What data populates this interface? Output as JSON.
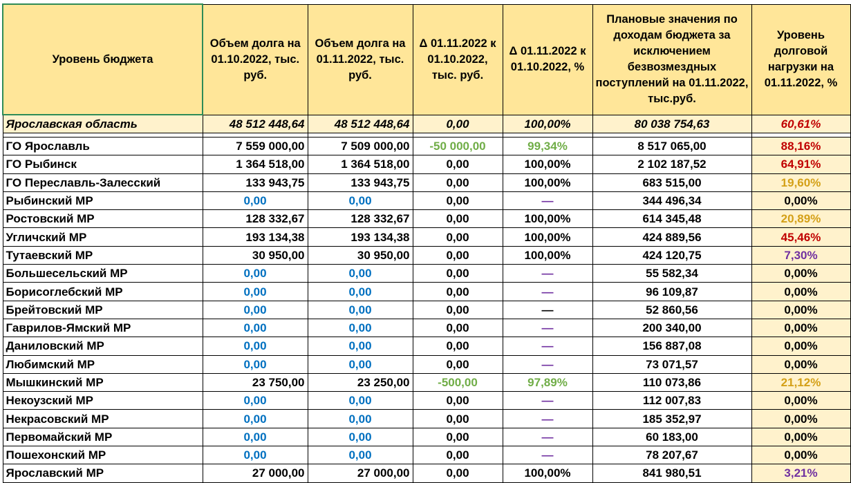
{
  "header": {
    "col_level": "Уровень бюджета",
    "col_debt_oct": "Объем долга на 01.10.2022, тыс. руб.",
    "col_debt_nov": "Объем долга на 01.11.2022, тыс. руб.",
    "col_delta_abs": "Δ 01.11.2022 к 01.10.2022, тыс. руб.",
    "col_delta_pct": "Δ 01.11.2022 к 01.10.2022, %",
    "col_plan": "Плановые значения по доходам бюджета за исключением безвозмездных поступлений на 01.11.2022, тыс.руб.",
    "col_load": "Уровень долговой нагрузки на 01.11.2022, %"
  },
  "region": {
    "name": "Ярославская область",
    "debt_oct": "48 512 448,64",
    "debt_nov": "48 512 448,64",
    "delta_abs": "0,00",
    "delta_pct": "100,00%",
    "plan": "80 038 754,63",
    "load": "60,61%"
  },
  "rows": [
    {
      "name": "ГО Ярославль",
      "debt_oct": "7 559 000,00",
      "debt_nov": "7 509 000,00",
      "delta_abs": "-50 000,00",
      "delta_pct": "99,34%",
      "plan": "8 517 065,00",
      "load": "88,16%"
    },
    {
      "name": "ГО Рыбинск",
      "debt_oct": "1 364 518,00",
      "debt_nov": "1 364 518,00",
      "delta_abs": "0,00",
      "delta_pct": "100,00%",
      "plan": "2 102 187,52",
      "load": "64,91%"
    },
    {
      "name": "ГО Переславль-Залесский",
      "debt_oct": "133 943,75",
      "debt_nov": "133 943,75",
      "delta_abs": "0,00",
      "delta_pct": "100,00%",
      "plan": "683 515,00",
      "load": "19,60%"
    },
    {
      "name": "Рыбинский МР",
      "debt_oct": "0,00",
      "debt_nov": "0,00",
      "delta_abs": "0,00",
      "delta_pct": "—",
      "plan": "344 496,34",
      "load": "0,00%"
    },
    {
      "name": "Ростовский МР",
      "debt_oct": "128 332,67",
      "debt_nov": "128 332,67",
      "delta_abs": "0,00",
      "delta_pct": "100,00%",
      "plan": "614 345,48",
      "load": "20,89%"
    },
    {
      "name": "Угличский МР",
      "debt_oct": "193 134,38",
      "debt_nov": "193 134,38",
      "delta_abs": "0,00",
      "delta_pct": "100,00%",
      "plan": "424 889,56",
      "load": "45,46%"
    },
    {
      "name": "Тутаевский МР",
      "debt_oct": "30 950,00",
      "debt_nov": "30 950,00",
      "delta_abs": "0,00",
      "delta_pct": "100,00%",
      "plan": "424 120,75",
      "load": "7,30%"
    },
    {
      "name": "Большесельский МР",
      "debt_oct": "0,00",
      "debt_nov": "0,00",
      "delta_abs": "0,00",
      "delta_pct": "—",
      "plan": "55 582,34",
      "load": "0,00%"
    },
    {
      "name": "Борисоглебский МР",
      "debt_oct": "0,00",
      "debt_nov": "0,00",
      "delta_abs": "0,00",
      "delta_pct": "—",
      "plan": "96 109,87",
      "load": "0,00%"
    },
    {
      "name": "Брейтовский МР",
      "debt_oct": "0,00",
      "debt_nov": "0,00",
      "delta_abs": "0,00",
      "delta_pct": "—",
      "plan": "52 860,56",
      "load": "0,00%"
    },
    {
      "name": "Гаврилов-Ямский МР",
      "debt_oct": "0,00",
      "debt_nov": "0,00",
      "delta_abs": "0,00",
      "delta_pct": "—",
      "plan": "200 340,00",
      "load": "0,00%"
    },
    {
      "name": "Даниловский МР",
      "debt_oct": "0,00",
      "debt_nov": "0,00",
      "delta_abs": "0,00",
      "delta_pct": "—",
      "plan": "156 887,08",
      "load": "0,00%"
    },
    {
      "name": "Любимский МР",
      "debt_oct": "0,00",
      "debt_nov": "0,00",
      "delta_abs": "0,00",
      "delta_pct": "—",
      "plan": "73 071,57",
      "load": "0,00%"
    },
    {
      "name": "Мышкинский МР",
      "debt_oct": "23 750,00",
      "debt_nov": "23 250,00",
      "delta_abs": "-500,00",
      "delta_pct": "97,89%",
      "plan": "110 073,86",
      "load": "21,12%"
    },
    {
      "name": "Некоузский МР",
      "debt_oct": "0,00",
      "debt_nov": "0,00",
      "delta_abs": "0,00",
      "delta_pct": "—",
      "plan": "112 007,83",
      "load": "0,00%"
    },
    {
      "name": "Некрасовский МР",
      "debt_oct": "0,00",
      "debt_nov": "0,00",
      "delta_abs": "0,00",
      "delta_pct": "—",
      "plan": "185 352,97",
      "load": "0,00%"
    },
    {
      "name": "Первомайский МР",
      "debt_oct": "0,00",
      "debt_nov": "0,00",
      "delta_abs": "0,00",
      "delta_pct": "—",
      "plan": "60 183,00",
      "load": "0,00%"
    },
    {
      "name": "Пошехонский МР",
      "debt_oct": "0,00",
      "debt_nov": "0,00",
      "delta_abs": "0,00",
      "delta_pct": "—",
      "plan": "78 207,67",
      "load": "0,00%"
    },
    {
      "name": "Ярославский МР",
      "debt_oct": "27 000,00",
      "debt_nov": "27 000,00",
      "delta_abs": "0,00",
      "delta_pct": "100,00%",
      "plan": "841 980,51",
      "load": "3,21%"
    }
  ],
  "colors": {
    "header_bg": "#ffe699",
    "highlight_bg": "#fff2cc",
    "zero_debt": "#0070c0",
    "negative_delta": "#70ad47",
    "dash": "#7030a0",
    "load_high": "#c00000",
    "load_mid": "#d4a017",
    "load_low": "#7030a0"
  }
}
